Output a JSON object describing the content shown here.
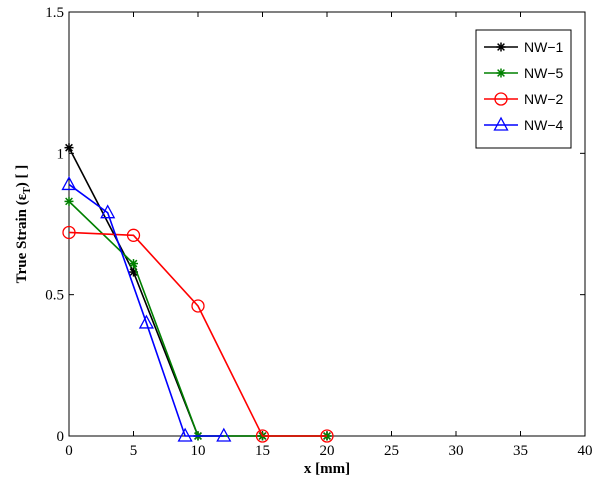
{
  "chart_data": {
    "type": "line",
    "title": "",
    "xlabel": "x [mm]",
    "ylabel_parts": [
      "True Strain (ε",
      "T",
      ") [ ]"
    ],
    "xlim": [
      0,
      40
    ],
    "ylim": [
      0,
      1.5
    ],
    "xticks": [
      0,
      5,
      10,
      15,
      20,
      25,
      30,
      35,
      40
    ],
    "yticks": [
      0,
      0.5,
      1,
      1.5
    ],
    "ytick_labels": [
      "0",
      "0.5",
      "1",
      "1.5"
    ],
    "grid": false,
    "legend_position": "top-right",
    "series": [
      {
        "name": "NW−1",
        "color": "#000000",
        "marker": "asterisk",
        "x": [
          0,
          5,
          10,
          15,
          20
        ],
        "y": [
          1.02,
          0.58,
          0,
          0,
          0
        ]
      },
      {
        "name": "NW−5",
        "color": "#008000",
        "marker": "asterisk",
        "x": [
          0,
          5,
          10,
          15,
          20
        ],
        "y": [
          0.83,
          0.61,
          0,
          0,
          0
        ]
      },
      {
        "name": "NW−2",
        "color": "#ff0000",
        "marker": "circle",
        "x": [
          0,
          5,
          10,
          15,
          20
        ],
        "y": [
          0.72,
          0.71,
          0.46,
          0,
          0
        ]
      },
      {
        "name": "NW−4",
        "color": "#0000ff",
        "marker": "triangle",
        "x": [
          0,
          3,
          6,
          9,
          12
        ],
        "y": [
          0.89,
          0.79,
          0.4,
          0,
          0
        ]
      }
    ]
  }
}
